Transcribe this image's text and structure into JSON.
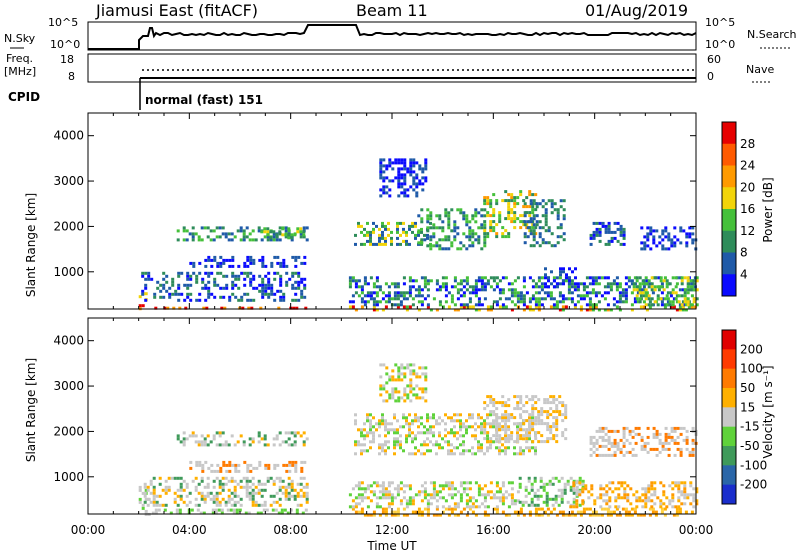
{
  "header": {
    "station": "Jiamusi East (fitACF)",
    "beam": "Beam 11",
    "date": "01/Aug/2019"
  },
  "summary_panels": {
    "nsky": {
      "label": "N.Sky",
      "ticks": [
        "10^5",
        "10^0"
      ]
    },
    "nsearch": {
      "label": "N.Search",
      "ticks": [
        "10^5",
        "10^0"
      ]
    },
    "freq": {
      "label": "Freq.",
      "unit": "[MHz]",
      "ticks": [
        18,
        8
      ]
    },
    "nave": {
      "label": "Nave",
      "ticks": [
        60,
        0
      ]
    },
    "cpid": {
      "label": "CPID",
      "value": "normal (fast) 151"
    }
  },
  "chart_data": [
    {
      "type": "heatmap",
      "panel": "power",
      "ylabel": "Slant Range [km]",
      "yticks": [
        1000,
        2000,
        3000,
        4000
      ],
      "ylim": [
        180,
        4500
      ],
      "xlim_hours": [
        0,
        24
      ],
      "colorbar": {
        "label": "Power [dB]",
        "ticks": [
          4,
          8,
          12,
          16,
          20,
          24,
          28
        ],
        "colors": [
          "#0a0aff",
          "#1f5aa8",
          "#2e8c5a",
          "#45c03a",
          "#f2d40a",
          "#ff9a00",
          "#ff5a00",
          "#e60000"
        ]
      },
      "regions": [
        {
          "t0": 2.0,
          "t1": 2.3,
          "r0": 180,
          "r1": 550,
          "mix": [
            "#e60000",
            "#ff9a00",
            "#f2d40a"
          ]
        },
        {
          "t0": 2.5,
          "t1": 8.6,
          "r0": 180,
          "r1": 230,
          "mix": [
            "#e60000",
            "#ff9a00"
          ]
        },
        {
          "t0": 2.1,
          "t1": 8.6,
          "r0": 350,
          "r1": 1000,
          "mix": [
            "#1f5aa8",
            "#0a0aff",
            "#2e8c5a"
          ]
        },
        {
          "t0": 4.0,
          "t1": 8.6,
          "r0": 1150,
          "r1": 1350,
          "mix": [
            "#1f5aa8",
            "#0a0aff"
          ]
        },
        {
          "t0": 3.5,
          "t1": 8.6,
          "r0": 1700,
          "r1": 2000,
          "mix": [
            "#1f5aa8",
            "#2e8c5a",
            "#45c03a"
          ]
        },
        {
          "t0": 6.8,
          "t1": 8.6,
          "r0": 1750,
          "r1": 1980,
          "mix": [
            "#45c03a",
            "#f2d40a",
            "#2e8c5a"
          ]
        },
        {
          "t0": 10.3,
          "t1": 24.0,
          "r0": 180,
          "r1": 260,
          "mix": [
            "#e60000",
            "#ff9a00",
            "#f2d40a",
            "#45c03a"
          ]
        },
        {
          "t0": 10.3,
          "t1": 24.0,
          "r0": 260,
          "r1": 900,
          "mix": [
            "#1f5aa8",
            "#0a0aff",
            "#2e8c5a",
            "#45c03a"
          ]
        },
        {
          "t0": 10.5,
          "t1": 13.5,
          "r0": 1600,
          "r1": 2100,
          "mix": [
            "#2e8c5a",
            "#45c03a",
            "#f2d40a",
            "#1f5aa8"
          ]
        },
        {
          "t0": 11.5,
          "t1": 13.3,
          "r0": 2700,
          "r1": 3500,
          "mix": [
            "#1f5aa8",
            "#0a0aff"
          ]
        },
        {
          "t0": 13.0,
          "t1": 15.7,
          "r0": 1500,
          "r1": 2400,
          "mix": [
            "#1f5aa8",
            "#2e8c5a",
            "#45c03a"
          ]
        },
        {
          "t0": 15.6,
          "t1": 17.7,
          "r0": 1800,
          "r1": 2800,
          "mix": [
            "#2e8c5a",
            "#45c03a",
            "#f2d40a",
            "#ff9a00"
          ]
        },
        {
          "t0": 17.2,
          "t1": 18.8,
          "r0": 1600,
          "r1": 2600,
          "mix": [
            "#1f5aa8",
            "#2e8c5a"
          ]
        },
        {
          "t0": 18.0,
          "t1": 19.3,
          "r0": 700,
          "r1": 1100,
          "mix": [
            "#1f5aa8",
            "#0a0aff"
          ]
        },
        {
          "t0": 19.8,
          "t1": 21.2,
          "r0": 1600,
          "r1": 2100,
          "mix": [
            "#1f5aa8",
            "#0a0aff",
            "#2e8c5a"
          ]
        },
        {
          "t0": 21.8,
          "t1": 24.0,
          "r0": 1500,
          "r1": 2000,
          "mix": [
            "#1f5aa8",
            "#0a0aff"
          ]
        },
        {
          "t0": 21.5,
          "t1": 24.0,
          "r0": 300,
          "r1": 900,
          "mix": [
            "#2e8c5a",
            "#45c03a",
            "#f2d40a"
          ]
        }
      ]
    },
    {
      "type": "heatmap",
      "panel": "velocity",
      "ylabel": "Slant Range [km]",
      "yticks": [
        1000,
        2000,
        3000,
        4000
      ],
      "ylim": [
        180,
        4500
      ],
      "xlim_hours": [
        0,
        24
      ],
      "xticks": [
        "00:00",
        "04:00",
        "08:00",
        "12:00",
        "16:00",
        "20:00",
        "00:00"
      ],
      "xlabel": "Time UT",
      "colorbar": {
        "label": "Velocity [m s⁻¹]",
        "ticks": [
          200,
          100,
          50,
          15,
          -15,
          -50,
          -100,
          -200
        ],
        "colors": [
          "#1a2ecc",
          "#2a66a8",
          "#3f9a5a",
          "#5fd23a",
          "#c8c8c8",
          "#ffb000",
          "#ff7a00",
          "#ff3a00",
          "#e00000"
        ]
      },
      "regions": [
        {
          "t0": 2.0,
          "t1": 2.4,
          "r0": 180,
          "r1": 800,
          "mix": [
            "#c8c8c8",
            "#5fd23a"
          ]
        },
        {
          "t0": 2.4,
          "t1": 8.6,
          "r0": 180,
          "r1": 300,
          "mix": [
            "#5fd23a",
            "#c8c8c8"
          ]
        },
        {
          "t0": 2.2,
          "t1": 8.6,
          "r0": 400,
          "r1": 1000,
          "mix": [
            "#c8c8c8",
            "#c8c8c8",
            "#ffb000",
            "#3f9a5a"
          ]
        },
        {
          "t0": 4.0,
          "t1": 8.6,
          "r0": 1150,
          "r1": 1350,
          "mix": [
            "#c8c8c8",
            "#c8c8c8",
            "#ff7a00"
          ]
        },
        {
          "t0": 3.5,
          "t1": 8.6,
          "r0": 1700,
          "r1": 2000,
          "mix": [
            "#c8c8c8",
            "#c8c8c8",
            "#ffb000",
            "#3f9a5a"
          ]
        },
        {
          "t0": 10.3,
          "t1": 24.0,
          "r0": 180,
          "r1": 320,
          "mix": [
            "#ffb000",
            "#ff9a00",
            "#ffd040"
          ]
        },
        {
          "t0": 10.3,
          "t1": 17.0,
          "r0": 320,
          "r1": 900,
          "mix": [
            "#c8c8c8",
            "#c8c8c8",
            "#ffb000",
            "#5fd23a"
          ]
        },
        {
          "t0": 17.0,
          "t1": 19.5,
          "r0": 400,
          "r1": 1000,
          "mix": [
            "#5fd23a",
            "#3f9a5a",
            "#c8c8c8"
          ]
        },
        {
          "t0": 10.5,
          "t1": 17.7,
          "r0": 1500,
          "r1": 2400,
          "mix": [
            "#c8c8c8",
            "#c8c8c8",
            "#5fd23a",
            "#ffb000"
          ]
        },
        {
          "t0": 11.5,
          "t1": 13.3,
          "r0": 2700,
          "r1": 3500,
          "mix": [
            "#c8c8c8",
            "#ffb000",
            "#5fd23a"
          ]
        },
        {
          "t0": 15.6,
          "t1": 18.8,
          "r0": 1800,
          "r1": 2800,
          "mix": [
            "#c8c8c8",
            "#c8c8c8",
            "#ffb000"
          ]
        },
        {
          "t0": 19.8,
          "t1": 24.0,
          "r0": 1500,
          "r1": 2100,
          "mix": [
            "#c8c8c8",
            "#c8c8c8",
            "#ff7a00"
          ]
        },
        {
          "t0": 19.0,
          "t1": 24.0,
          "r0": 320,
          "r1": 900,
          "mix": [
            "#ffb000",
            "#ff9a00",
            "#c8c8c8"
          ]
        }
      ]
    }
  ]
}
